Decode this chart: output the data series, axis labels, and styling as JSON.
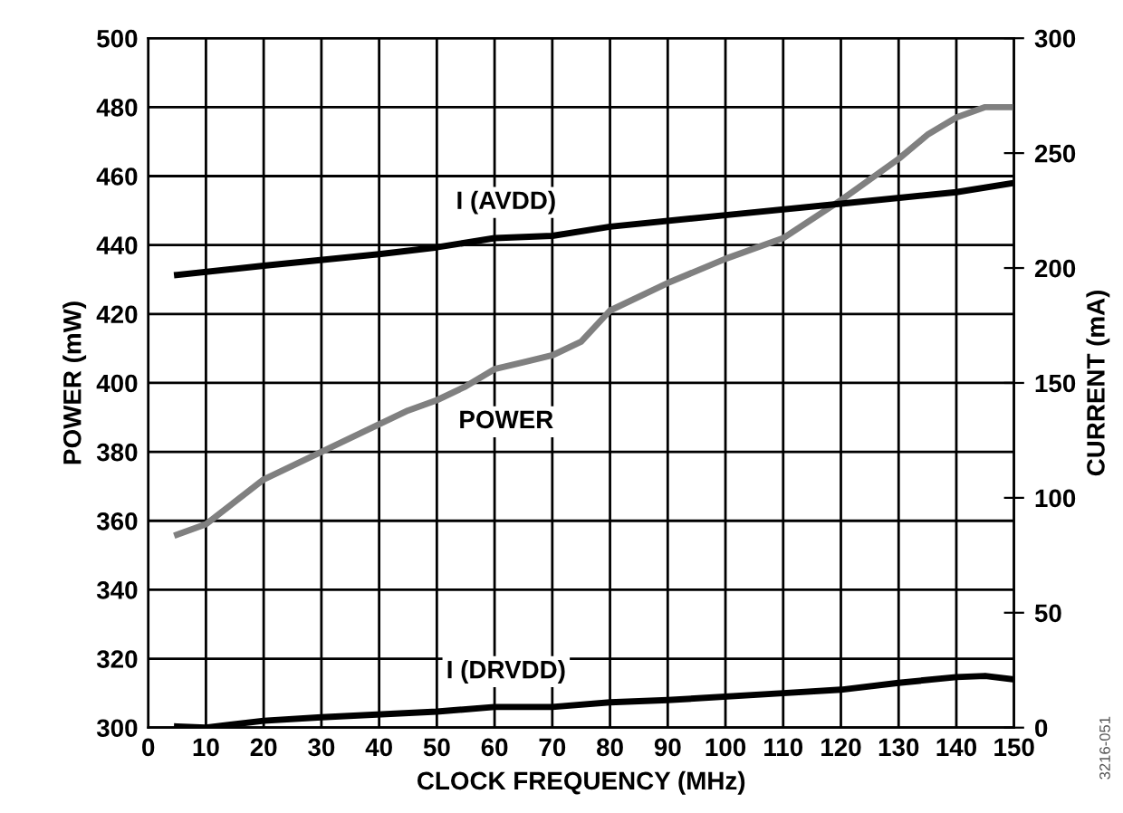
{
  "chart_data": {
    "type": "line",
    "xlabel": "CLOCK FREQUENCY (MHz)",
    "ylabel": "POWER (mW)",
    "y2label": "CURRENT (mA)",
    "xlim": [
      0,
      150
    ],
    "xticks": [
      0,
      10,
      20,
      30,
      40,
      50,
      60,
      70,
      80,
      90,
      100,
      110,
      120,
      130,
      140,
      150
    ],
    "ylim": [
      300,
      500
    ],
    "yticks": [
      300,
      320,
      340,
      360,
      380,
      400,
      420,
      440,
      460,
      480,
      500
    ],
    "y2lim": [
      0,
      300
    ],
    "y2ticks": [
      0,
      50,
      100,
      150,
      200,
      250,
      300
    ],
    "grid": true,
    "legend": false,
    "marker": "none",
    "line_style": "solid",
    "series": [
      {
        "name": "I (AVDD)",
        "color": "#000000",
        "axis": "y2",
        "x": [
          5,
          20,
          40,
          50,
          60,
          70,
          80,
          100,
          120,
          140,
          150
        ],
        "values": [
          197,
          201,
          206,
          209,
          213,
          214,
          218,
          223,
          228,
          233,
          237
        ]
      },
      {
        "name": "POWER",
        "color": "#808080",
        "axis": "y",
        "x": [
          5,
          10,
          20,
          25,
          30,
          40,
          45,
          50,
          55,
          60,
          65,
          70,
          75,
          80,
          90,
          100,
          110,
          120,
          130,
          135,
          140,
          145,
          150
        ],
        "values": [
          356,
          359,
          372,
          376,
          380,
          388,
          392,
          395,
          399,
          404,
          406,
          408,
          412,
          421,
          429,
          436,
          442,
          453,
          465,
          472,
          477,
          480,
          480
        ]
      },
      {
        "name": "I (DRVDD)",
        "color": "#000000",
        "axis": "y2",
        "x": [
          5,
          10,
          20,
          30,
          50,
          60,
          70,
          80,
          90,
          110,
          120,
          130,
          140,
          145,
          150
        ],
        "values": [
          0.5,
          0,
          3,
          4.5,
          7,
          9,
          9,
          11,
          12,
          15,
          16.5,
          19.5,
          22,
          22.5,
          21
        ]
      }
    ],
    "annotations": [
      "3216-051"
    ]
  }
}
